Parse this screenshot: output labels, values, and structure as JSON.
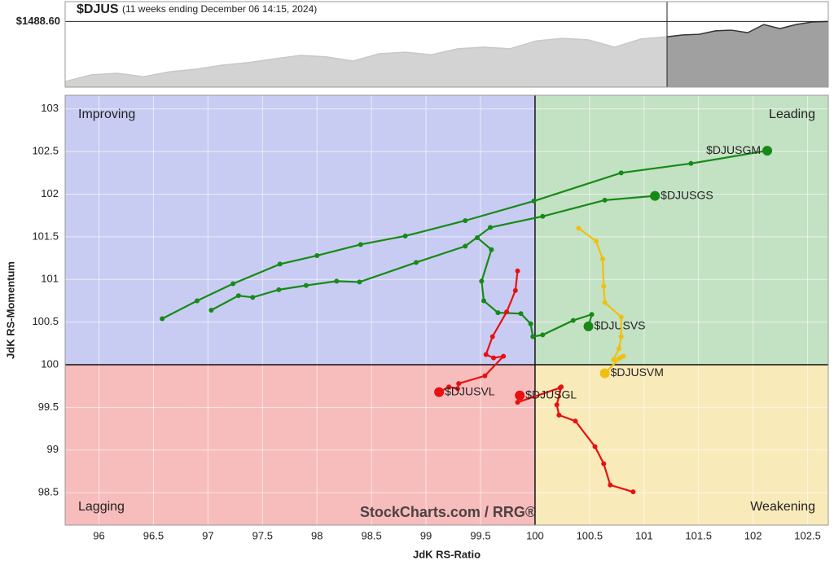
{
  "chart_data": {
    "type": "rrg",
    "title": "$DJUS",
    "subtitle": "(11 weeks ending December 06 14:15, 2024)",
    "price": {
      "history": [
        1298,
        1319,
        1324,
        1313,
        1329,
        1337,
        1350,
        1358,
        1370,
        1381,
        1376,
        1363,
        1386,
        1391,
        1383,
        1402,
        1407,
        1402,
        1427,
        1435,
        1430,
        1407,
        1433,
        1440
      ],
      "recent": [
        1440,
        1446,
        1448,
        1459,
        1461,
        1453,
        1479,
        1466,
        1479,
        1487,
        1488.6
      ],
      "ylim": [
        1280,
        1500
      ],
      "last": {
        "value": 1488.6,
        "label": "$1488.60"
      },
      "history_color": "#d3d3d3",
      "recent_color": "#a0a0a0"
    },
    "x_label": "JdK RS-Ratio",
    "y_label": "JdK RS-Momentum",
    "xlim": [
      95.69,
      102.69
    ],
    "ylim": [
      98.12,
      103.16
    ],
    "xticks": [
      96,
      96.5,
      97,
      97.5,
      98,
      98.5,
      99,
      99.5,
      100,
      100.5,
      101,
      101.5,
      102,
      102.5
    ],
    "yticks": [
      98.5,
      99,
      99.5,
      100,
      100.5,
      101,
      101.5,
      102,
      102.5,
      103
    ],
    "grid": true,
    "center": {
      "x": 100,
      "y": 100
    },
    "quadrants": [
      {
        "name": "Improving",
        "color": "#c8ccf2",
        "text_color": "#3b4bd0"
      },
      {
        "name": "Leading",
        "color": "#c3e1c3",
        "text_color": "#1e8a1e"
      },
      {
        "name": "Lagging",
        "color": "#f7bcbc",
        "text_color": "#d52020"
      },
      {
        "name": "Weakening",
        "color": "#f9eab9",
        "text_color": "#e0b000"
      }
    ],
    "watermark": "StockCharts.com / RRG®",
    "series": [
      {
        "name": "$DJUSGM",
        "color": "#168a16",
        "x": [
          96.58,
          96.9,
          97.23,
          97.66,
          98.0,
          98.4,
          98.81,
          99.36,
          99.99,
          100.79,
          101.43,
          102.13
        ],
        "values": [
          100.54,
          100.75,
          100.95,
          101.18,
          101.28,
          101.41,
          101.51,
          101.69,
          101.92,
          102.25,
          102.36,
          102.51
        ]
      },
      {
        "name": "$DJUSGS",
        "color": "#168a16",
        "x": [
          97.03,
          97.28,
          97.41,
          97.65,
          97.9,
          98.18,
          98.39,
          98.91,
          99.36,
          99.59,
          100.07,
          100.64,
          101.1
        ],
        "values": [
          100.64,
          100.81,
          100.79,
          100.88,
          100.93,
          100.98,
          100.97,
          101.2,
          101.39,
          101.61,
          101.74,
          101.93,
          101.98
        ]
      },
      {
        "name": "$DJUSVS",
        "color": "#168a16",
        "x": [
          99.47,
          99.6,
          99.51,
          99.53,
          99.66,
          99.87,
          99.96,
          99.98,
          100.07,
          100.35,
          100.52,
          100.49
        ],
        "values": [
          101.49,
          101.35,
          100.98,
          100.75,
          100.61,
          100.6,
          100.48,
          100.33,
          100.35,
          100.52,
          100.59,
          100.45
        ]
      },
      {
        "name": "$DJUSVM",
        "color": "#f0c010",
        "x": [
          100.4,
          100.56,
          100.62,
          100.63,
          100.64,
          100.79,
          100.79,
          100.77,
          100.72,
          100.81,
          100.78,
          100.64
        ],
        "values": [
          101.6,
          101.45,
          101.24,
          100.92,
          100.73,
          100.56,
          100.33,
          100.19,
          100.06,
          100.1,
          100.08,
          99.9
        ]
      },
      {
        "name": "$DJUSVL",
        "color": "#e81010",
        "x": [
          99.84,
          99.82,
          99.74,
          99.61,
          99.55,
          99.62,
          99.71,
          99.54,
          99.3,
          99.29,
          99.21,
          99.12
        ],
        "values": [
          101.1,
          100.87,
          100.62,
          100.33,
          100.12,
          100.08,
          100.1,
          99.87,
          99.78,
          99.72,
          99.74,
          99.68
        ]
      },
      {
        "name": "$DJUSGL",
        "color": "#e81010",
        "x": [
          100.9,
          100.69,
          100.63,
          100.55,
          100.37,
          100.22,
          100.2,
          100.24,
          100.23,
          99.84,
          99.85,
          99.86
        ],
        "values": [
          98.51,
          98.59,
          98.84,
          99.04,
          99.34,
          99.41,
          99.53,
          99.74,
          99.73,
          99.56,
          99.63,
          99.64
        ]
      }
    ]
  }
}
